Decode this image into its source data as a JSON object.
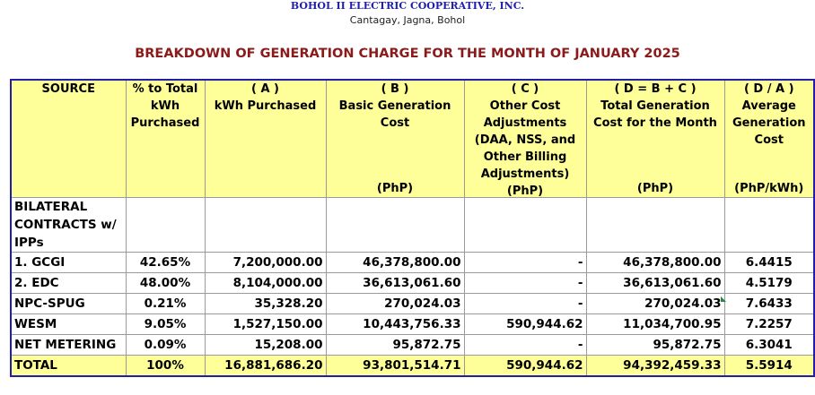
{
  "header": {
    "org_name": "BOHOL II ELECTRIC COOPERATIVE, INC.",
    "org_address": "Cantagay, Jagna, Bohol",
    "report_title": "BREAKDOWN OF GENERATION CHARGE FOR THE MONTH OF JANUARY 2025"
  },
  "table": {
    "columns": [
      {
        "top": "",
        "label": "SOURCE",
        "unit": ""
      },
      {
        "top": "",
        "label": "% to Total kWh Purchased",
        "unit": ""
      },
      {
        "top": "( A )",
        "label": "kWh Purchased",
        "unit": ""
      },
      {
        "top": "( B )",
        "label": "Basic Generation Cost",
        "unit": "(PhP)"
      },
      {
        "top": "( C )",
        "label": "Other Cost Adjustments (DAA, NSS, and Other Billing Adjustments)",
        "unit": "(PhP)"
      },
      {
        "top": "( D = B + C )",
        "label": "Total Generation Cost for the Month",
        "unit": "(PhP)"
      },
      {
        "top": "( D / A )",
        "label": "Average Generation Cost",
        "unit": "(PhP/kWh)"
      }
    ],
    "rows": [
      {
        "source": "BILATERAL CONTRACTS w/ IPPs",
        "pct": "",
        "kwh": "",
        "basic": "",
        "other": "",
        "total": "",
        "avg": ""
      },
      {
        "source": "1. GCGI",
        "pct": "42.65%",
        "kwh": "7,200,000.00",
        "basic": "46,378,800.00",
        "other": "-",
        "total": "46,378,800.00",
        "avg": "6.4415"
      },
      {
        "source": "2. EDC",
        "pct": "48.00%",
        "kwh": "8,104,000.00",
        "basic": "36,613,061.60",
        "other": "-",
        "total": "36,613,061.60",
        "avg": "4.5179"
      },
      {
        "source": "NPC-SPUG",
        "pct": "0.21%",
        "kwh": "35,328.20",
        "basic": "270,024.03",
        "other": "-",
        "total": "270,024.03",
        "avg": "7.6433"
      },
      {
        "source": "WESM",
        "pct": "9.05%",
        "kwh": "1,527,150.00",
        "basic": "10,443,756.33",
        "other": "590,944.62",
        "total": "11,034,700.95",
        "avg": "7.2257"
      },
      {
        "source": "NET METERING",
        "pct": "0.09%",
        "kwh": "15,208.00",
        "basic": "95,872.75",
        "other": "-",
        "total": "95,872.75",
        "avg": "6.3041"
      },
      {
        "source": "TOTAL",
        "pct": "100%",
        "kwh": "16,881,686.20",
        "basic": "93,801,514.71",
        "other": "590,944.62",
        "total": "94,392,459.33",
        "avg": "5.5914"
      }
    ]
  }
}
